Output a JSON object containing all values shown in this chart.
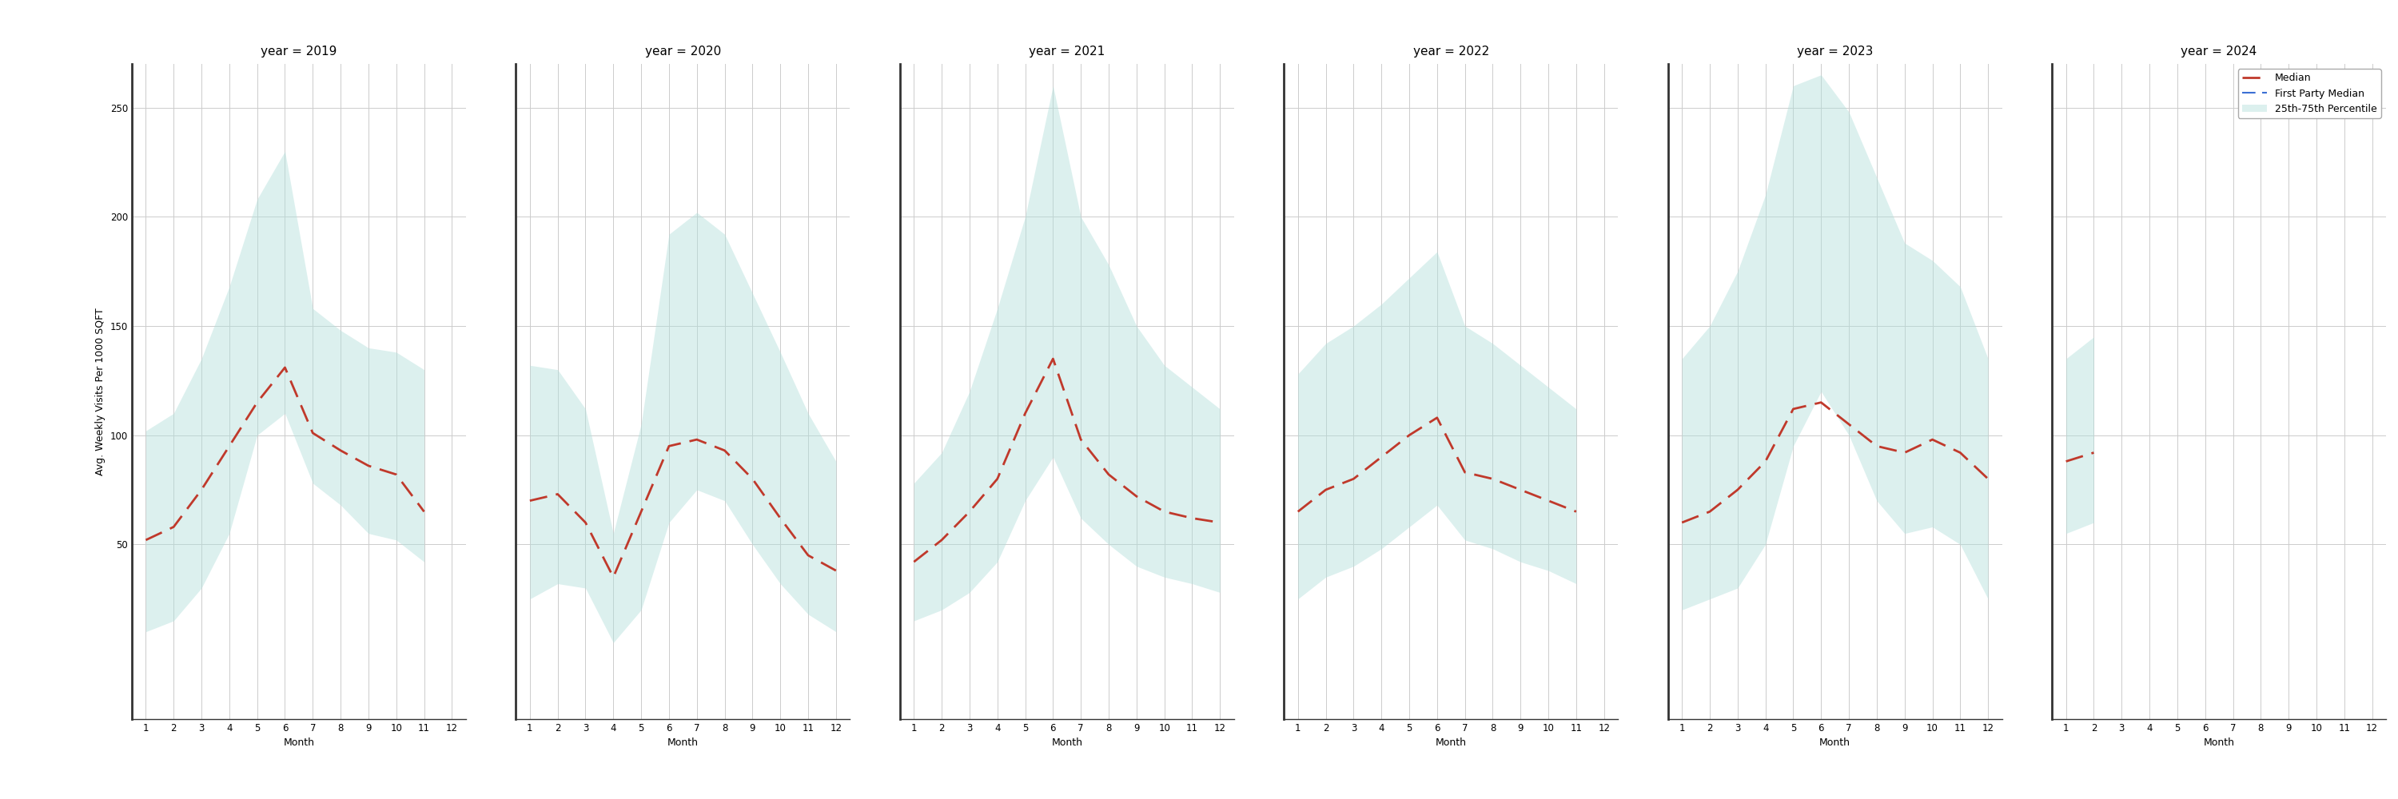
{
  "years": [
    "2019",
    "2020",
    "2021",
    "2022",
    "2023",
    "2024"
  ],
  "months": [
    1,
    2,
    3,
    4,
    5,
    6,
    7,
    8,
    9,
    10,
    11,
    12
  ],
  "median": {
    "2019": [
      52,
      58,
      75,
      95,
      115,
      131,
      101,
      93,
      86,
      82,
      65,
      null
    ],
    "2020": [
      70,
      73,
      60,
      35,
      65,
      95,
      98,
      93,
      80,
      62,
      45,
      38
    ],
    "2021": [
      42,
      52,
      65,
      80,
      110,
      135,
      98,
      82,
      72,
      65,
      62,
      60
    ],
    "2022": [
      65,
      75,
      80,
      90,
      100,
      108,
      83,
      80,
      75,
      70,
      65,
      null
    ],
    "2023": [
      60,
      65,
      75,
      88,
      112,
      115,
      105,
      95,
      92,
      98,
      92,
      80
    ],
    "2024": [
      88,
      92,
      null,
      null,
      null,
      null,
      null,
      null,
      null,
      null,
      null,
      null
    ]
  },
  "p25": {
    "2019": [
      10,
      15,
      30,
      55,
      100,
      110,
      78,
      68,
      55,
      52,
      42,
      null
    ],
    "2020": [
      25,
      32,
      30,
      5,
      20,
      60,
      75,
      70,
      50,
      32,
      18,
      10
    ],
    "2021": [
      15,
      20,
      28,
      42,
      70,
      90,
      62,
      50,
      40,
      35,
      32,
      28
    ],
    "2022": [
      25,
      35,
      40,
      48,
      58,
      68,
      52,
      48,
      42,
      38,
      32,
      null
    ],
    "2023": [
      20,
      25,
      30,
      50,
      95,
      120,
      100,
      70,
      55,
      58,
      50,
      25
    ],
    "2024": [
      55,
      60,
      null,
      null,
      null,
      null,
      null,
      null,
      null,
      null,
      null,
      null
    ]
  },
  "p75": {
    "2019": [
      102,
      110,
      135,
      168,
      208,
      230,
      158,
      148,
      140,
      138,
      130,
      null
    ],
    "2020": [
      132,
      130,
      112,
      55,
      105,
      192,
      202,
      192,
      165,
      138,
      110,
      88
    ],
    "2021": [
      78,
      92,
      120,
      158,
      200,
      260,
      200,
      178,
      150,
      132,
      122,
      112
    ],
    "2022": [
      128,
      142,
      150,
      160,
      172,
      184,
      150,
      142,
      132,
      122,
      112,
      null
    ],
    "2023": [
      135,
      150,
      175,
      210,
      260,
      265,
      248,
      218,
      188,
      180,
      168,
      135
    ],
    "2024": [
      135,
      145,
      null,
      null,
      null,
      null,
      null,
      null,
      null,
      null,
      null,
      null
    ]
  },
  "ylim": [
    -30,
    270
  ],
  "yticks": [
    50,
    100,
    150,
    200,
    250
  ],
  "xlabel": "Month",
  "ylabel": "Avg. Weekly Visits Per 1000 SQFT",
  "fill_color": "#b2dfdb",
  "fill_alpha": 0.45,
  "median_color": "#c0392b",
  "fp_color": "#3b6fd4",
  "bg_color": "#ffffff",
  "grid_color": "#cccccc",
  "spine_color": "#333333",
  "title_fontsize": 11,
  "label_fontsize": 9,
  "tick_fontsize": 8.5
}
